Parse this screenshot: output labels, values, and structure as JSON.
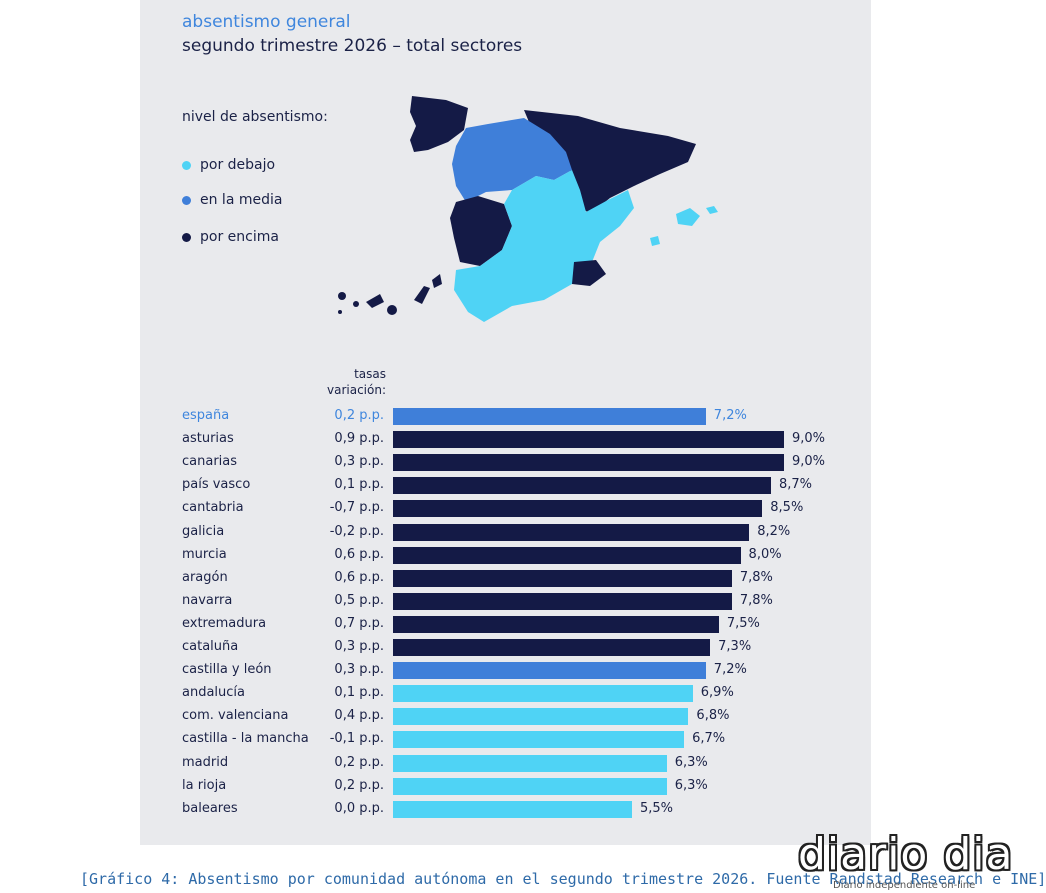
{
  "title": "absentismo general",
  "subtitle": "segundo trimestre 2026 – total sectores",
  "legend": {
    "title": "nivel de absentismo:",
    "items": [
      {
        "label": "por debajo",
        "color": "#4fd3f5"
      },
      {
        "label": "en la media",
        "color": "#3f7fd9"
      },
      {
        "label": "por encima",
        "color": "#141a46"
      }
    ]
  },
  "table_header": {
    "line1": "tasas",
    "line2": "variación:"
  },
  "chart_data": {
    "type": "bar",
    "orientation": "horizontal",
    "xlim": [
      0,
      9.0
    ],
    "categories": [
      "españa",
      "asturias",
      "canarias",
      "país vasco",
      "cantabria",
      "galicia",
      "murcia",
      "aragón",
      "navarra",
      "extremadura",
      "cataluña",
      "castilla y león",
      "andalucía",
      "com. valenciana",
      "castilla - la mancha",
      "madrid",
      "la rioja",
      "baleares"
    ],
    "values": [
      7.2,
      9.0,
      9.0,
      8.7,
      8.5,
      8.2,
      8.0,
      7.8,
      7.8,
      7.5,
      7.3,
      7.2,
      6.9,
      6.8,
      6.7,
      6.3,
      6.3,
      5.5
    ],
    "value_labels": [
      "7,2%",
      "9,0%",
      "9,0%",
      "8,7%",
      "8,5%",
      "8,2%",
      "8,0%",
      "7,8%",
      "7,8%",
      "7,5%",
      "7,3%",
      "7,2%",
      "6,9%",
      "6,8%",
      "6,7%",
      "6,3%",
      "6,3%",
      "5,5%"
    ],
    "variation": [
      "0,2 p.p.",
      "0,9 p.p.",
      "0,3 p.p.",
      "0,1 p.p.",
      "-0,7 p.p.",
      "-0,2 p.p.",
      "0,6 p.p.",
      "0,6 p.p.",
      "0,5 p.p.",
      "0,7 p.p.",
      "0,3 p.p.",
      "0,3 p.p.",
      "0,1 p.p.",
      "0,4 p.p.",
      "-0,1 p.p.",
      "0,2 p.p.",
      "0,2 p.p.",
      "0,0 p.p."
    ],
    "level": [
      "media",
      "encima",
      "encima",
      "encima",
      "encima",
      "encima",
      "encima",
      "encima",
      "encima",
      "encima",
      "encima",
      "media",
      "debajo",
      "debajo",
      "debajo",
      "debajo",
      "debajo",
      "debajo"
    ]
  },
  "colors": {
    "debajo": "#4fd3f5",
    "media": "#3f7fd9",
    "encima": "#141a46",
    "highlight_text": "#3f86dd"
  },
  "caption": "[Gráfico 4: Absentismo por comunidad autónoma en el segundo trimestre 2026. Fuente Randstad Research e INE]",
  "logo": {
    "name": "diario dia",
    "tagline": "Diario independiente on-line"
  }
}
